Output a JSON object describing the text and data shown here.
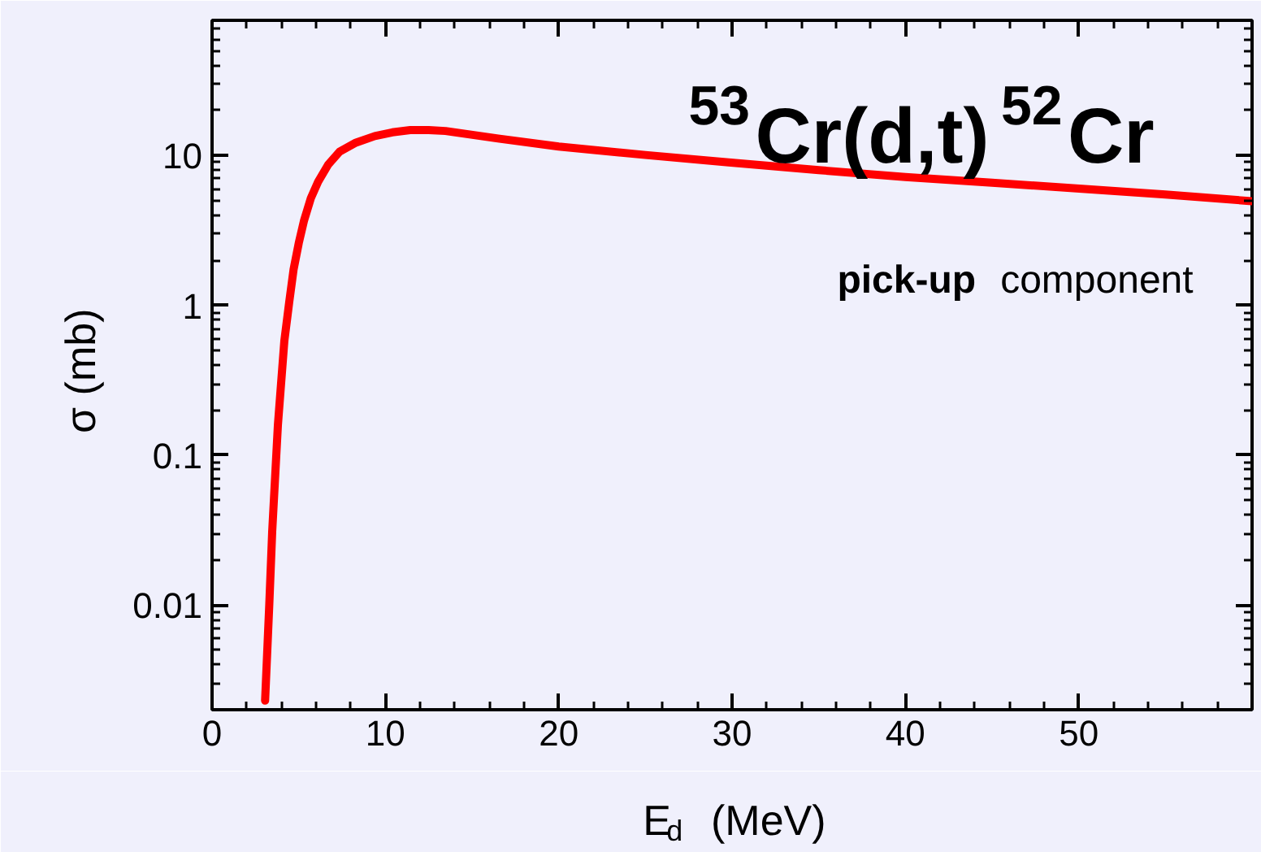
{
  "chart_data": {
    "type": "line",
    "title": "$^{53}$Cr(d,t)$^{52}$Cr",
    "xlabel": "E$_{d}$  (MeV)",
    "ylabel": "σ  (mb)",
    "annotations": [
      "pick-up component"
    ],
    "log": "y",
    "grid": false,
    "marker": "none",
    "line_style": "solid",
    "xlim": [
      0,
      60
    ],
    "xticks": [
      0,
      10,
      20,
      30,
      40,
      50
    ],
    "ylim": [
      0.002,
      80
    ],
    "yticks": [
      0.01,
      0.1,
      1,
      10
    ],
    "series": [
      {
        "color": "#ff0000",
        "x": [
          3.06,
          3.3,
          3.47,
          3.8,
          4.17,
          4.45,
          4.7,
          5.0,
          5.31,
          5.7,
          6.12,
          6.7,
          7.35,
          8.3,
          9.39,
          10.4,
          11.43,
          12.5,
          13.47,
          16.5,
          20.0,
          25.0,
          29.8,
          35.0,
          40.0,
          45.0,
          50.2,
          55.0,
          60.0
        ],
        "values": [
          0.0023,
          0.01,
          0.031,
          0.16,
          0.58,
          1.05,
          1.73,
          2.6,
          3.7,
          5.2,
          6.7,
          8.7,
          10.6,
          12.2,
          13.5,
          14.3,
          14.8,
          14.8,
          14.6,
          13.0,
          11.5,
          10.1,
          9.0,
          8.0,
          7.2,
          6.6,
          6.0,
          5.5,
          4.96
        ]
      }
    ]
  }
}
